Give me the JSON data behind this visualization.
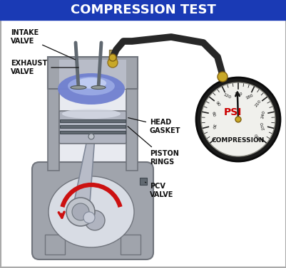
{
  "title": "COMPRESSION TEST",
  "title_bg_color": "#1a3ab5",
  "title_text_color": "#ffffff",
  "bg_color": "#ffffff",
  "labels": {
    "intake_valve": "INTAKE\nVALVE",
    "exhaust_valve": "EXHAUST\nVALVE",
    "head_gasket": "HEAD\nGASKET",
    "piston_rings": "PISTON\nRINGS",
    "pcv_valve": "PCV\nVALVE",
    "compression": "COMPRESSION",
    "psi": "PSI"
  },
  "engine_gray": "#a0a4ac",
  "engine_mid": "#888c94",
  "engine_dark": "#70747c",
  "engine_light": "#c8ccd4",
  "bore_color": "#d8dce8",
  "piston_top_color": "#c8ccd8",
  "piston_body": "#b0b4c0",
  "combustion_blue": "#7080d0",
  "combustion_light": "#a0b0e8",
  "combustion_white": "#d0dcf8",
  "hose_color": "#282828",
  "gold_color": "#c8a828",
  "arrow_color": "#cc1111",
  "gauge_border_dark": "#181818",
  "gauge_face": "#f0f0ec",
  "label_fontsize": 7.0,
  "annotation_color": "#111111"
}
